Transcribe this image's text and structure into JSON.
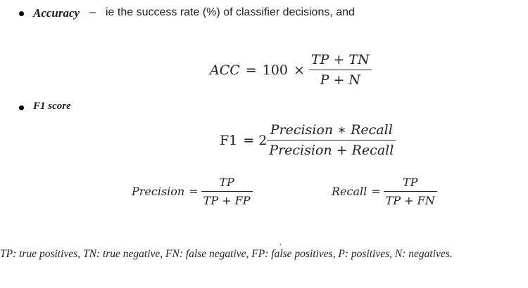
{
  "accuracy": {
    "title": "Accuracy",
    "dash": "–",
    "description": "ie the success rate (%) of classifier decisions, and",
    "formula": {
      "lhs": "ACC",
      "eq": "=",
      "factor": "100",
      "times": "×",
      "numerator": "TP + TN",
      "denominator": "P + N"
    }
  },
  "f1": {
    "title": "F1 score",
    "formula": {
      "lhs": "F1",
      "eq": "=",
      "factor": "2",
      "numerator": "Precision ∗ Recall",
      "denominator": "Precision + Recall"
    }
  },
  "precision": {
    "lhs": "Precision",
    "eq": "=",
    "numerator": "TP",
    "denominator": "TP + FP"
  },
  "recall": {
    "lhs": "Recall",
    "eq": "=",
    "numerator": "TP",
    "denominator": "TP + FN"
  },
  "stray_mark": ",",
  "legend": "TP: true positives, TN: true negative, FN: false negative, FP: false positives, P: positives, N: negatives."
}
